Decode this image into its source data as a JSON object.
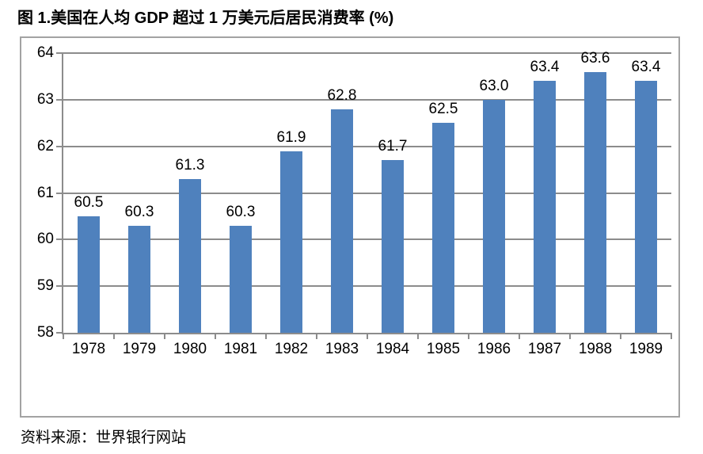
{
  "title": "图 1.美国在人均 GDP 超过 1 万美元后居民消费率 (%)",
  "source": "资料来源：世界银行网站",
  "chart_data": {
    "type": "bar",
    "title": "图 1.美国在人均 GDP 超过 1 万美元后居民消费率 (%)",
    "categories": [
      "1978",
      "1979",
      "1980",
      "1981",
      "1982",
      "1983",
      "1984",
      "1985",
      "1986",
      "1987",
      "1988",
      "1989"
    ],
    "values": [
      60.5,
      60.3,
      61.3,
      60.3,
      61.9,
      62.8,
      61.7,
      62.5,
      63.0,
      63.4,
      63.6,
      63.4
    ],
    "xlabel": "",
    "ylabel": "",
    "ylim": [
      58,
      64
    ],
    "yticks": [
      58,
      59,
      60,
      61,
      62,
      63,
      64
    ],
    "grid": true,
    "legend": "none",
    "data_labels": true,
    "bar_color": "#4F81BD",
    "gridline_color": "#8C8C8C",
    "axis_color": "#8C8C8C",
    "frame_color": "#A3A3A3",
    "label_color": "#000000",
    "source_note": "资料来源：世界银行网站"
  }
}
